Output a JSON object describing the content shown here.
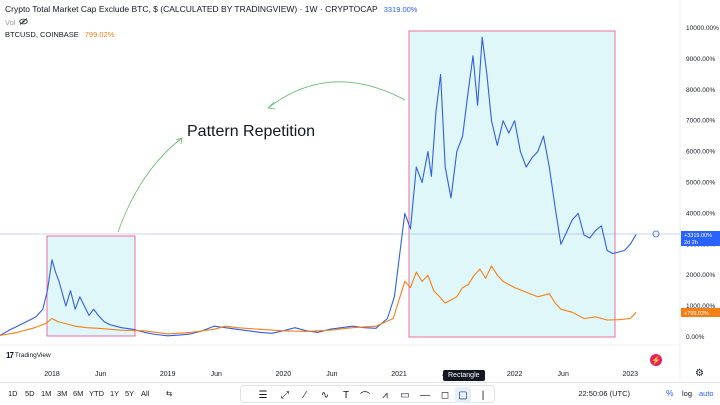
{
  "header": {
    "title": "Crypto Total Market Cap Exclude BTC, $ (CALCULATED BY TRADINGVIEW) · 1W · CRYPTOCAP",
    "title_pct": "3319.00%",
    "vol_label": "Vol",
    "compare_symbol": "BTCUSD, COINBASE",
    "compare_pct": "799.02%"
  },
  "annotation": {
    "text": "Pattern Repetition"
  },
  "price_labels": {
    "blue": "+3319.00%",
    "blue_sub": "2d 2h",
    "orange": "+799.02%"
  },
  "logo": {
    "text": "TradingView"
  },
  "toolbar": {
    "ranges": [
      "1D",
      "5D",
      "1M",
      "3M",
      "6M",
      "YTD",
      "1Y",
      "5Y",
      "All"
    ],
    "tooltip": "Rectangle",
    "clock": "22:50:06 (UTC)",
    "pct": "%",
    "log": "log",
    "auto": "auto"
  },
  "colors": {
    "blue_line": "#2f5fe3",
    "orange_line": "#f57f17",
    "rect_border": "#e84a8a",
    "rect_fill": "#e0f7fa",
    "arrow": "#66bb6a",
    "blue_label_bg": "#2962ff",
    "orange_label_bg": "#f57f17"
  },
  "chart_data": {
    "type": "line",
    "title": "Crypto Total Market Cap Exclude BTC",
    "xlabel": "",
    "ylabel": "",
    "y_ticks": [
      "10000.00%",
      "9000.00%",
      "8000.00%",
      "7000.00%",
      "6000.00%",
      "5000.00%",
      "4000.00%",
      "3000.00%",
      "2000.00%",
      "1000.00%",
      "0.00%"
    ],
    "y_tick_values": [
      10000,
      9000,
      8000,
      7000,
      6000,
      5000,
      4000,
      3000,
      2000,
      1000,
      0
    ],
    "ylim": [
      -300,
      10300
    ],
    "x_ticks": [
      "2018",
      "Jun",
      "2019",
      "Jun",
      "2020",
      "Jun",
      "2021",
      "Jun",
      "2022",
      "Jun",
      "2023"
    ],
    "x_tick_values": [
      2018.0,
      2018.42,
      2019.0,
      2019.42,
      2020.0,
      2020.42,
      2021.0,
      2021.42,
      2022.0,
      2022.42,
      2023.0
    ],
    "xlim": [
      2017.55,
      2023.43
    ],
    "series": [
      {
        "name": "Crypto Total Market Cap Exclude BTC",
        "color": "#2f5fe3",
        "x": [
          2017.55,
          2017.62,
          2017.7,
          2017.78,
          2017.86,
          2017.92,
          2017.96,
          2018.0,
          2018.03,
          2018.06,
          2018.09,
          2018.12,
          2018.16,
          2018.2,
          2018.24,
          2018.28,
          2018.32,
          2018.36,
          2018.4,
          2018.45,
          2018.5,
          2018.55,
          2018.6,
          2018.7,
          2018.8,
          2018.9,
          2019.0,
          2019.1,
          2019.2,
          2019.3,
          2019.4,
          2019.5,
          2019.6,
          2019.7,
          2019.8,
          2019.9,
          2020.0,
          2020.1,
          2020.2,
          2020.3,
          2020.4,
          2020.5,
          2020.6,
          2020.7,
          2020.8,
          2020.9,
          2020.96,
          2021.0,
          2021.05,
          2021.1,
          2021.15,
          2021.2,
          2021.25,
          2021.28,
          2021.32,
          2021.36,
          2021.4,
          2021.45,
          2021.5,
          2021.55,
          2021.6,
          2021.64,
          2021.68,
          2021.72,
          2021.76,
          2021.8,
          2021.85,
          2021.9,
          2021.95,
          2022.0,
          2022.05,
          2022.1,
          2022.15,
          2022.2,
          2022.25,
          2022.3,
          2022.35,
          2022.4,
          2022.45,
          2022.5,
          2022.55,
          2022.6,
          2022.65,
          2022.7,
          2022.75,
          2022.8,
          2022.85,
          2022.9,
          2022.95,
          2023.0,
          2023.05
        ],
        "y": [
          50,
          200,
          350,
          500,
          650,
          900,
          1500,
          2500,
          2100,
          1800,
          1400,
          1000,
          1500,
          900,
          1300,
          1000,
          700,
          900,
          700,
          500,
          400,
          350,
          300,
          250,
          150,
          80,
          40,
          60,
          100,
          200,
          350,
          300,
          250,
          200,
          150,
          120,
          200,
          300,
          200,
          150,
          250,
          300,
          350,
          300,
          280,
          600,
          1300,
          2500,
          4000,
          3500,
          5500,
          5000,
          6000,
          5200,
          7300,
          8500,
          5500,
          4500,
          6000,
          6500,
          8000,
          9100,
          7500,
          9700,
          8500,
          7000,
          6200,
          7000,
          6600,
          7000,
          6000,
          5500,
          5800,
          6000,
          6500,
          5500,
          4200,
          3000,
          3400,
          3800,
          4000,
          3300,
          3200,
          3450,
          3600,
          2800,
          2700,
          2750,
          2800,
          3000,
          3319
        ]
      },
      {
        "name": "BTCUSD, COINBASE",
        "color": "#f57f17",
        "x": [
          2017.55,
          2017.7,
          2017.85,
          2017.95,
          2018.0,
          2018.05,
          2018.1,
          2018.2,
          2018.3,
          2018.4,
          2018.5,
          2018.6,
          2018.8,
          2019.0,
          2019.2,
          2019.4,
          2019.5,
          2019.6,
          2019.8,
          2020.0,
          2020.2,
          2020.4,
          2020.6,
          2020.8,
          2020.95,
          2021.0,
          2021.05,
          2021.1,
          2021.15,
          2021.2,
          2021.25,
          2021.3,
          2021.35,
          2021.4,
          2021.45,
          2021.5,
          2021.55,
          2021.6,
          2021.65,
          2021.7,
          2021.75,
          2021.8,
          2021.85,
          2021.9,
          2021.95,
          2022.0,
          2022.1,
          2022.2,
          2022.3,
          2022.35,
          2022.4,
          2022.5,
          2022.6,
          2022.7,
          2022.8,
          2022.9,
          2023.0,
          2023.05
        ],
        "y": [
          50,
          150,
          300,
          450,
          600,
          500,
          450,
          350,
          300,
          280,
          250,
          220,
          200,
          100,
          150,
          250,
          350,
          300,
          250,
          200,
          180,
          220,
          300,
          350,
          600,
          1200,
          1800,
          1600,
          2100,
          1800,
          2000,
          1500,
          1300,
          1100,
          1200,
          1300,
          1600,
          1700,
          2000,
          2200,
          1900,
          2300,
          2000,
          1800,
          1700,
          1600,
          1450,
          1300,
          1400,
          1100,
          900,
          800,
          600,
          650,
          550,
          560,
          600,
          799
        ]
      }
    ]
  }
}
